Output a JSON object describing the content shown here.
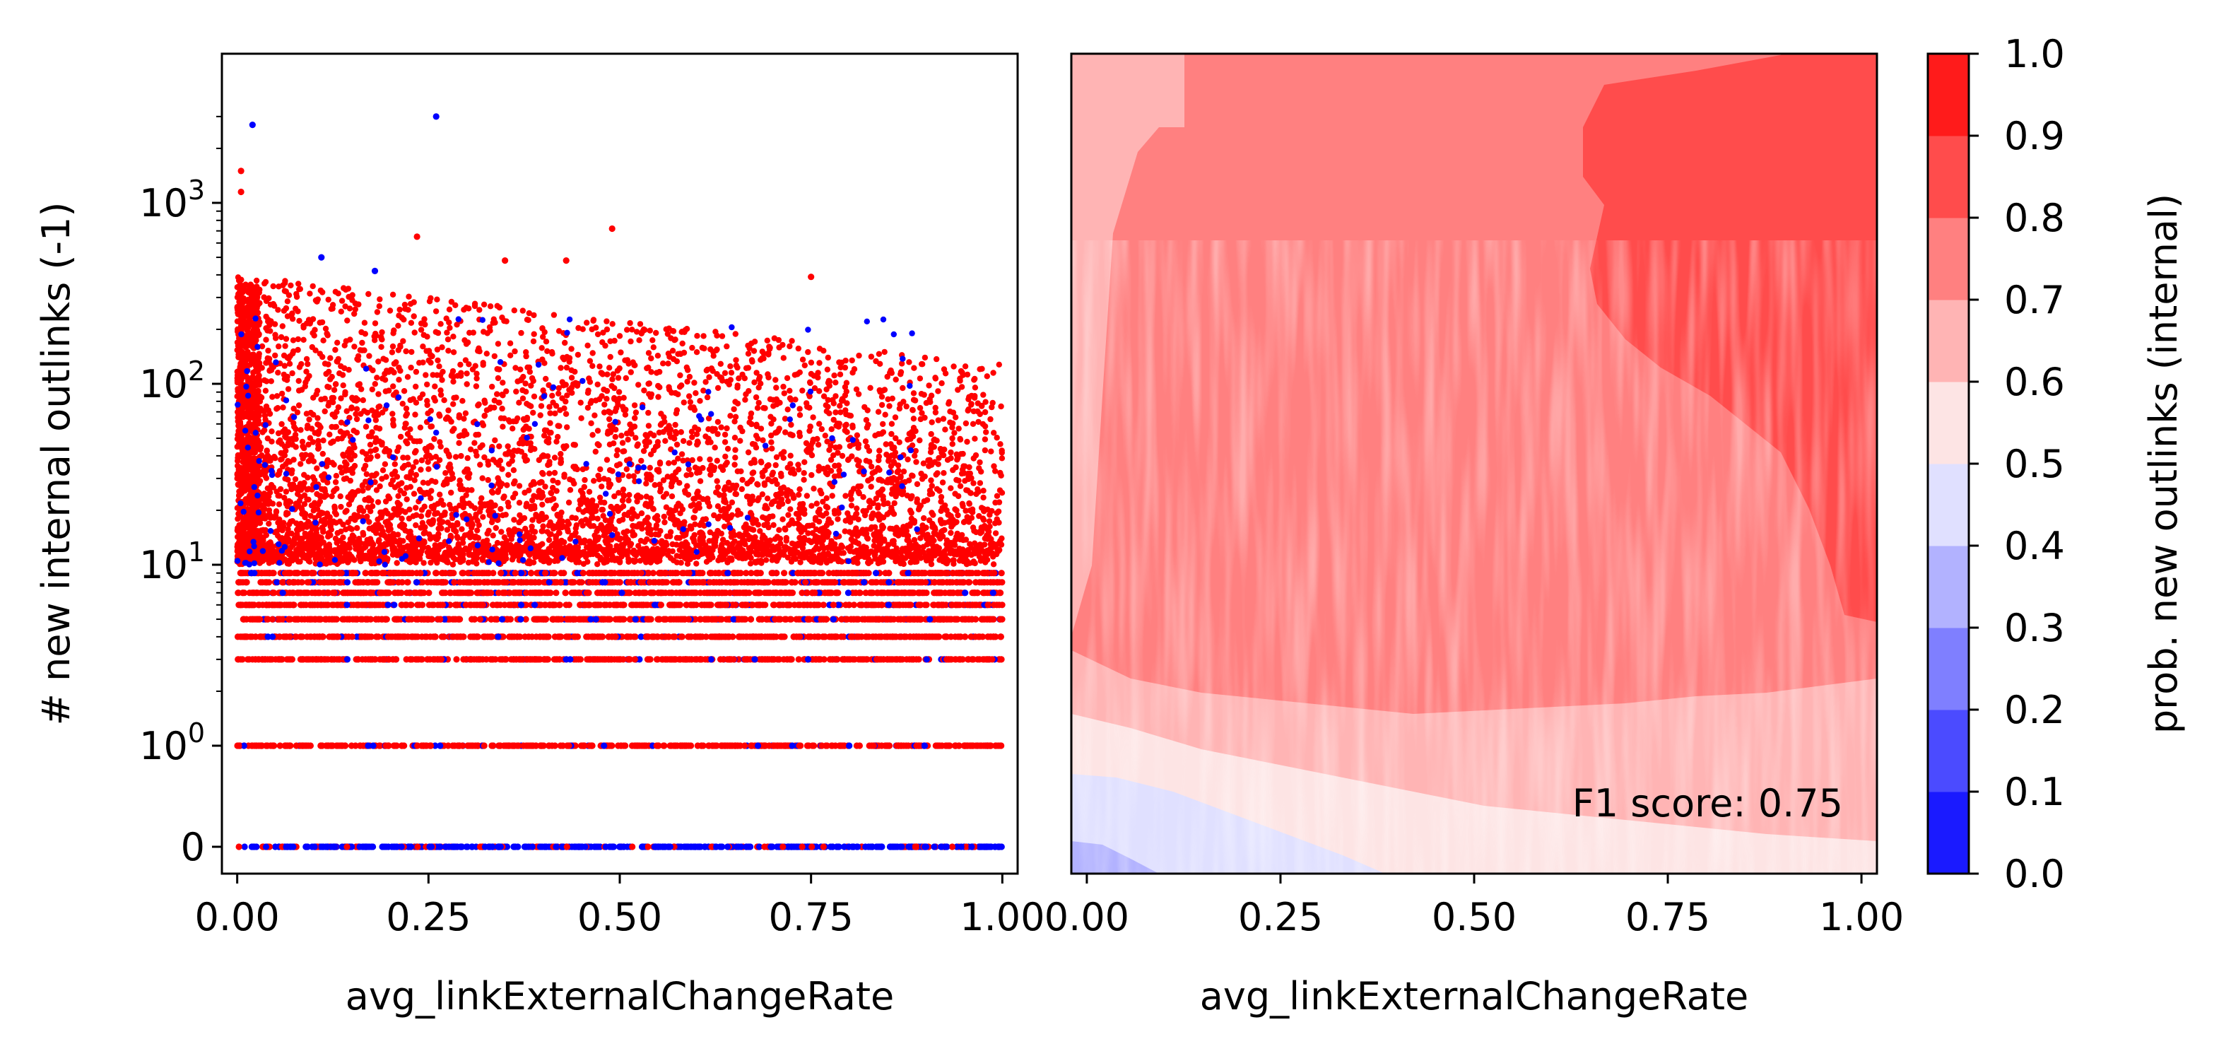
{
  "chart_data": [
    {
      "type": "scatter",
      "title": "",
      "xlabel": "avg_linkExternalChangeRate",
      "ylabel": "# new internal outlinks (-1)",
      "xlim": [
        -0.02,
        1.02
      ],
      "x_ticks": [
        0.0,
        0.25,
        0.5,
        0.75,
        1.0
      ],
      "x_tick_labels": [
        "0.00",
        "0.25",
        "0.50",
        "0.75",
        "1.00"
      ],
      "y_scale": "symlog",
      "y_ticks": [
        0,
        1,
        10,
        100,
        1000
      ],
      "y_tick_labels": [
        "0",
        "10^0",
        "10^1",
        "10^2",
        "10^3"
      ],
      "grid": false,
      "legend": "none",
      "series": [
        {
          "color": "#ff0000",
          "description": "red points (positive class)"
        },
        {
          "color": "#0000ff",
          "description": "blue points (negative class)"
        }
      ],
      "notable_points": [
        {
          "x": 0.26,
          "y": 3000,
          "color": "#0000ff"
        },
        {
          "x": 0.02,
          "y": 2700,
          "color": "#0000ff"
        },
        {
          "x": 0.005,
          "y": 1500,
          "color": "#ff0000"
        },
        {
          "x": 0.005,
          "y": 1150,
          "color": "#ff0000"
        },
        {
          "x": 0.49,
          "y": 720,
          "color": "#ff0000"
        },
        {
          "x": 0.235,
          "y": 650,
          "color": "#ff0000"
        },
        {
          "x": 0.11,
          "y": 500,
          "color": "#0000ff"
        },
        {
          "x": 0.43,
          "y": 480,
          "color": "#ff0000"
        },
        {
          "x": 0.35,
          "y": 480,
          "color": "#ff0000"
        },
        {
          "x": 0.18,
          "y": 420,
          "color": "#0000ff"
        },
        {
          "x": 0.75,
          "y": 390,
          "color": "#ff0000"
        }
      ],
      "discrete_levels": [
        0,
        1,
        3,
        4,
        5,
        6,
        7,
        8,
        9
      ]
    },
    {
      "type": "heatmap",
      "title": "",
      "xlabel": "avg_linkExternalChangeRate",
      "ylabel": "",
      "xlim": [
        -0.02,
        1.02
      ],
      "x_ticks": [
        0.0,
        0.25,
        0.5,
        0.75,
        1.0
      ],
      "x_tick_labels": [
        "0.00",
        "0.25",
        "0.50",
        "0.75",
        "1.00"
      ],
      "annotation": "F1 score: 0.75",
      "annotation_position": "bottom-right",
      "colorbar": {
        "label": "prob. new outlinks (internal)",
        "range": [
          0.0,
          1.0
        ],
        "ticks": [
          0.0,
          0.1,
          0.2,
          0.3,
          0.4,
          0.5,
          0.6,
          0.7,
          0.8,
          0.9,
          1.0
        ],
        "tick_labels": [
          "0.0",
          "0.1",
          "0.2",
          "0.3",
          "0.4",
          "0.5",
          "0.6",
          "0.7",
          "0.8",
          "0.9",
          "1.0"
        ],
        "level_colors": [
          "#1a1aff",
          "#4b4bff",
          "#7f7fff",
          "#b2b2ff",
          "#e0e0ff",
          "#fde4e4",
          "#ffb4b4",
          "#ff8080",
          "#ff4c4c",
          "#ff1b1b"
        ]
      },
      "regions_description": "mostly 0.7-0.8 (salmon) in upper area, 0.8-0.9 region upper right, 0.6-0.7 band at lower area, 0.5-0.6 near bottom, 0.4-0.5 at very bottom left"
    }
  ]
}
